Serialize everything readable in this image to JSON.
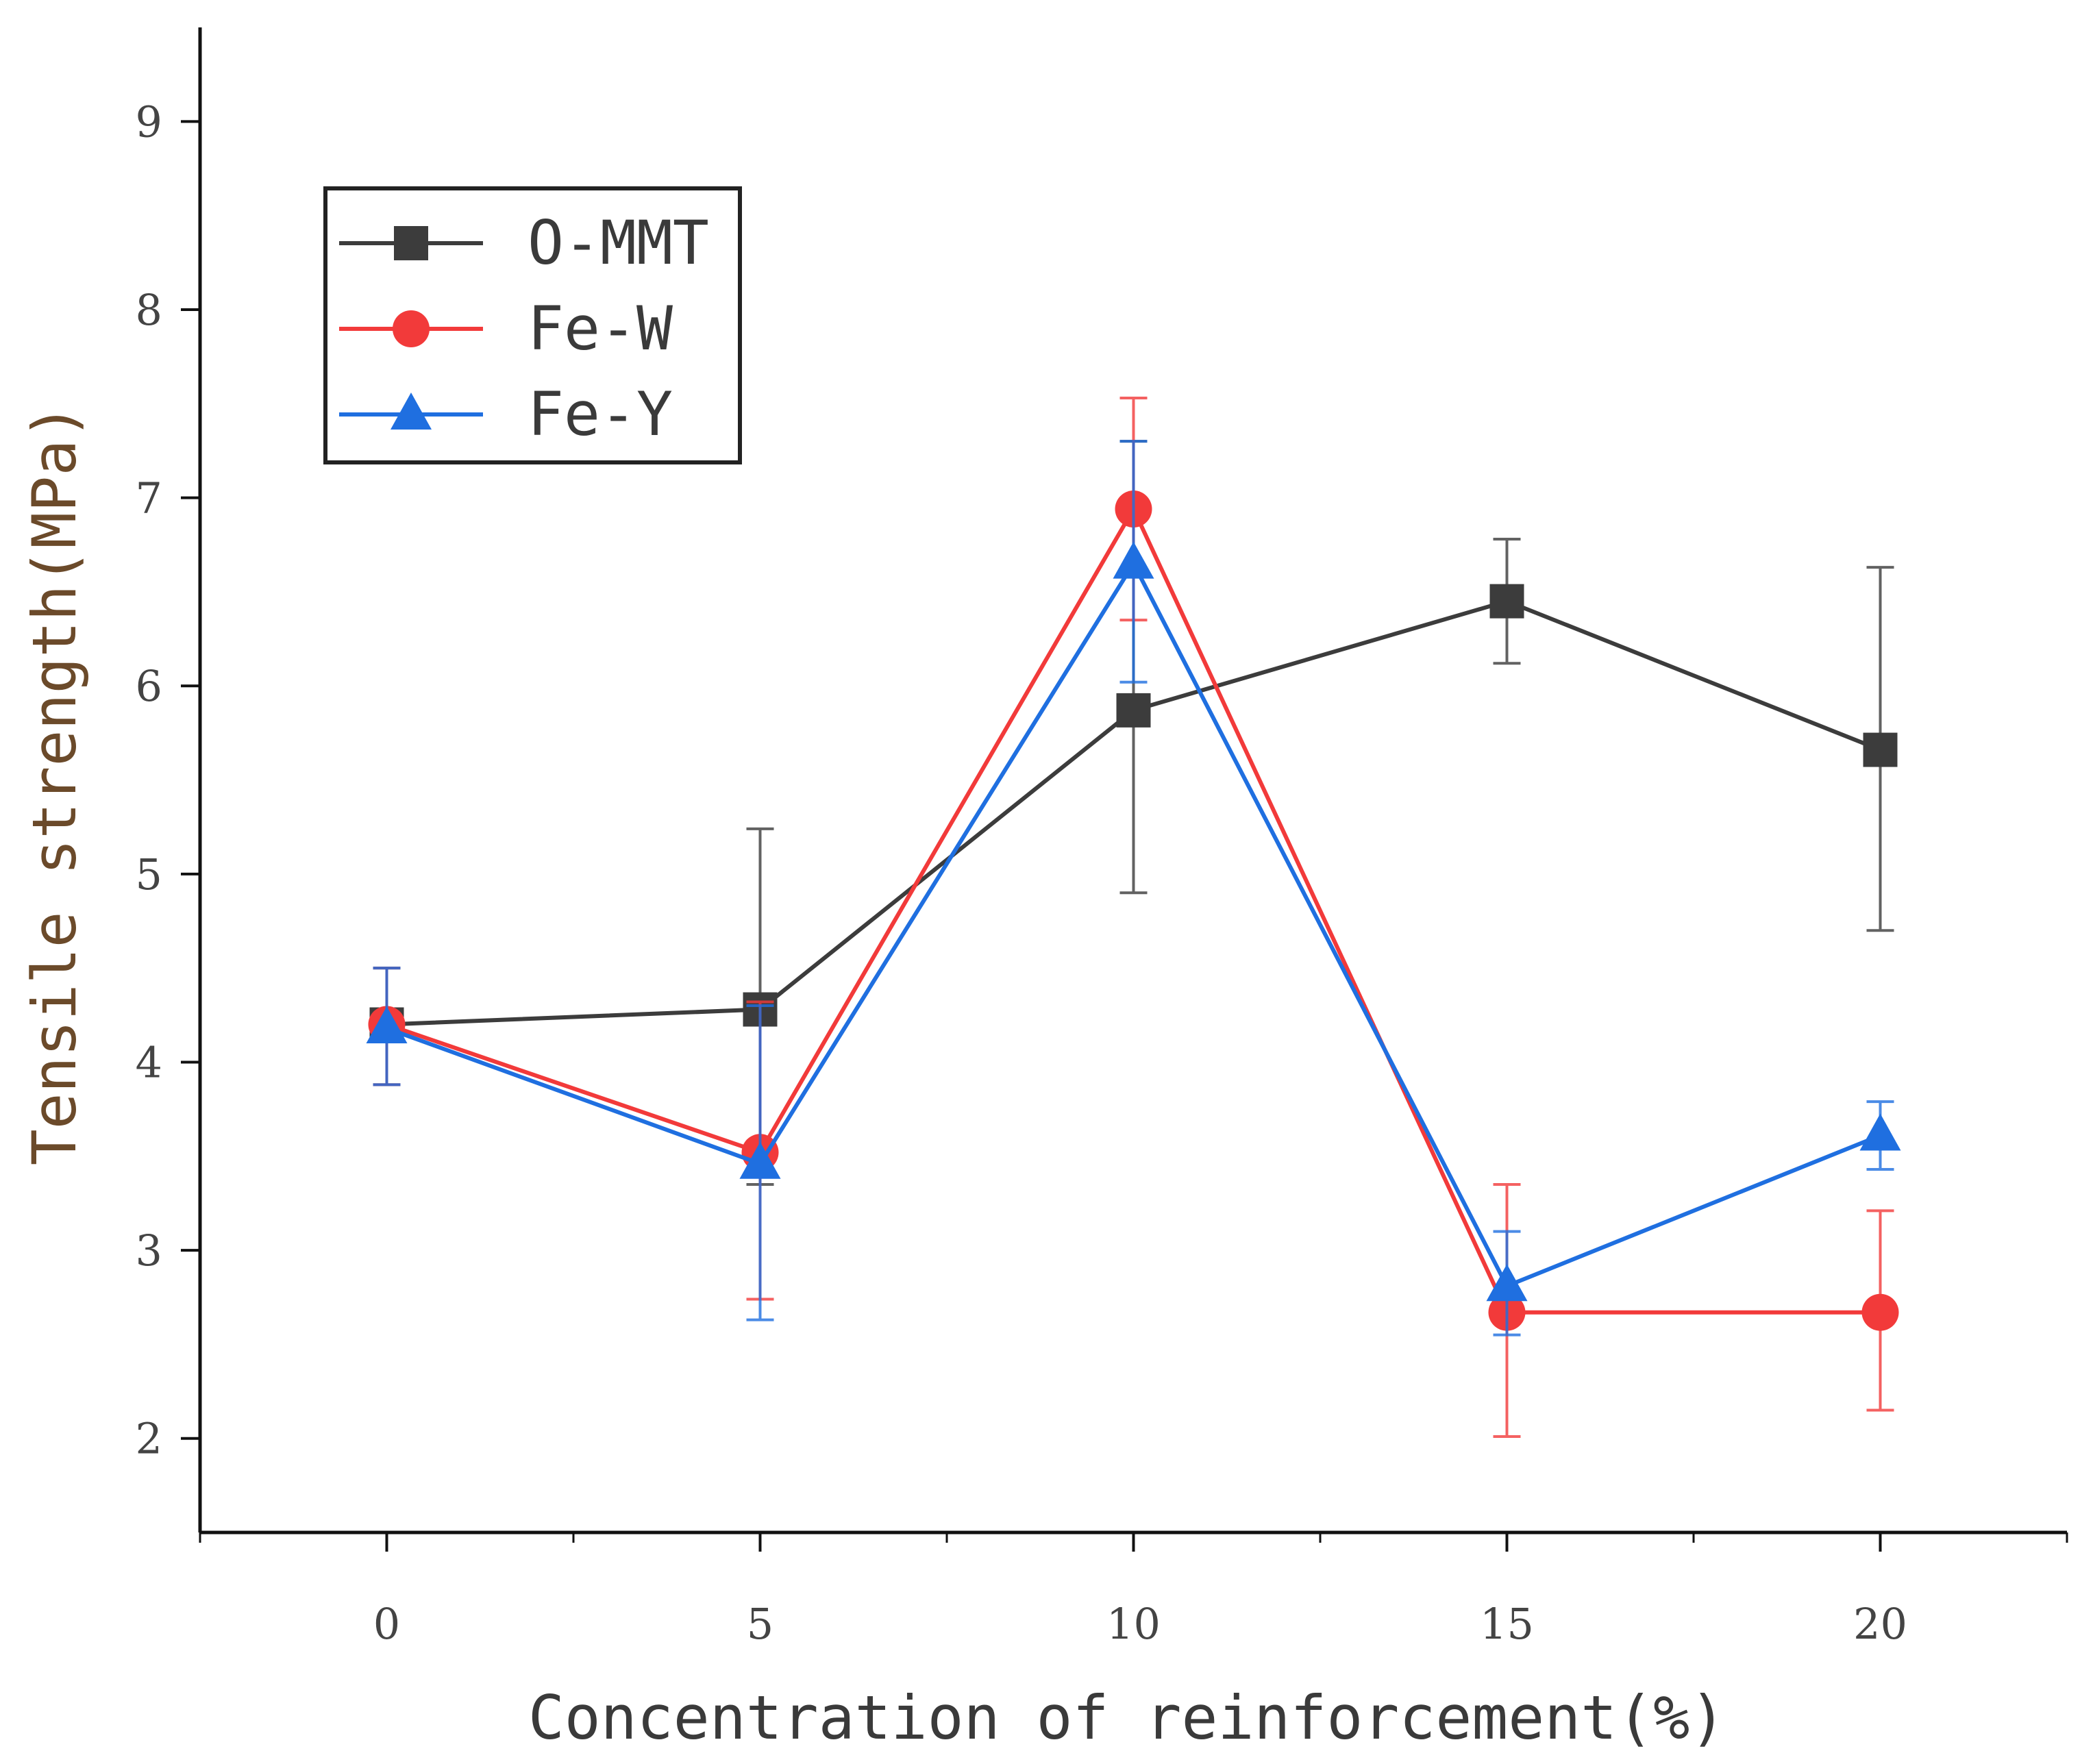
{
  "chart_data": {
    "type": "line",
    "title": "",
    "xlabel": "Concentration of reinforcement(%)",
    "ylabel": "Tensile strength(MPa)",
    "x": [
      0,
      5,
      10,
      15,
      20
    ],
    "xlim": [
      -2.5,
      22.5
    ],
    "ylim": [
      1.5,
      9.5
    ],
    "xticks": [
      0,
      5,
      10,
      15,
      20
    ],
    "yticks": [
      2,
      3,
      4,
      5,
      6,
      7,
      8,
      9
    ],
    "grid": false,
    "legend_position": "top-left",
    "series": [
      {
        "name": "O-MMT",
        "color": "#3c3c3c",
        "marker": "square",
        "values": [
          4.2,
          4.28,
          5.87,
          6.45,
          5.66
        ],
        "error_low": [
          3.88,
          3.35,
          4.9,
          6.12,
          4.7
        ],
        "error_high": [
          4.5,
          5.24,
          7.3,
          6.78,
          6.63
        ]
      },
      {
        "name": "Fe-W",
        "color": "#f23a3a",
        "marker": "circle",
        "values": [
          4.2,
          3.52,
          6.94,
          2.67,
          2.67
        ],
        "error_low": [
          3.88,
          2.74,
          6.35,
          2.01,
          2.15
        ],
        "error_high": [
          4.5,
          4.32,
          7.53,
          3.35,
          3.21
        ]
      },
      {
        "name": "Fe-Y",
        "color": "#1f6fe0",
        "marker": "triangle",
        "values": [
          4.18,
          3.46,
          6.65,
          2.81,
          3.61
        ],
        "error_low": [
          3.88,
          2.63,
          6.02,
          2.55,
          3.43
        ],
        "error_high": [
          4.5,
          4.3,
          7.3,
          3.1,
          3.79
        ]
      }
    ]
  }
}
